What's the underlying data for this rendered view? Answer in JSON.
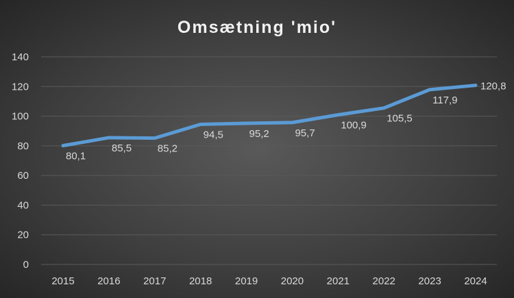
{
  "chart_data": {
    "type": "line",
    "title": "Omsætning 'mio'",
    "xlabel": "",
    "ylabel": "",
    "categories": [
      "2015",
      "2016",
      "2017",
      "2018",
      "2019",
      "2020",
      "2021",
      "2022",
      "2023",
      "2024"
    ],
    "series": [
      {
        "name": "Omsætning",
        "values": [
          80.1,
          85.5,
          85.2,
          94.5,
          95.2,
          95.7,
          100.9,
          105.5,
          117.9,
          120.8
        ],
        "labels": [
          "80,1",
          "85,5",
          "85,2",
          "94,5",
          "95,2",
          "95,7",
          "100,9",
          "105,5",
          "117,9",
          "120,8"
        ],
        "color": "#5b9bd5"
      }
    ],
    "yticks": [
      "0",
      "20",
      "40",
      "60",
      "80",
      "100",
      "120",
      "140"
    ],
    "ylim": [
      0,
      140
    ],
    "grid": true,
    "legend": "none"
  }
}
